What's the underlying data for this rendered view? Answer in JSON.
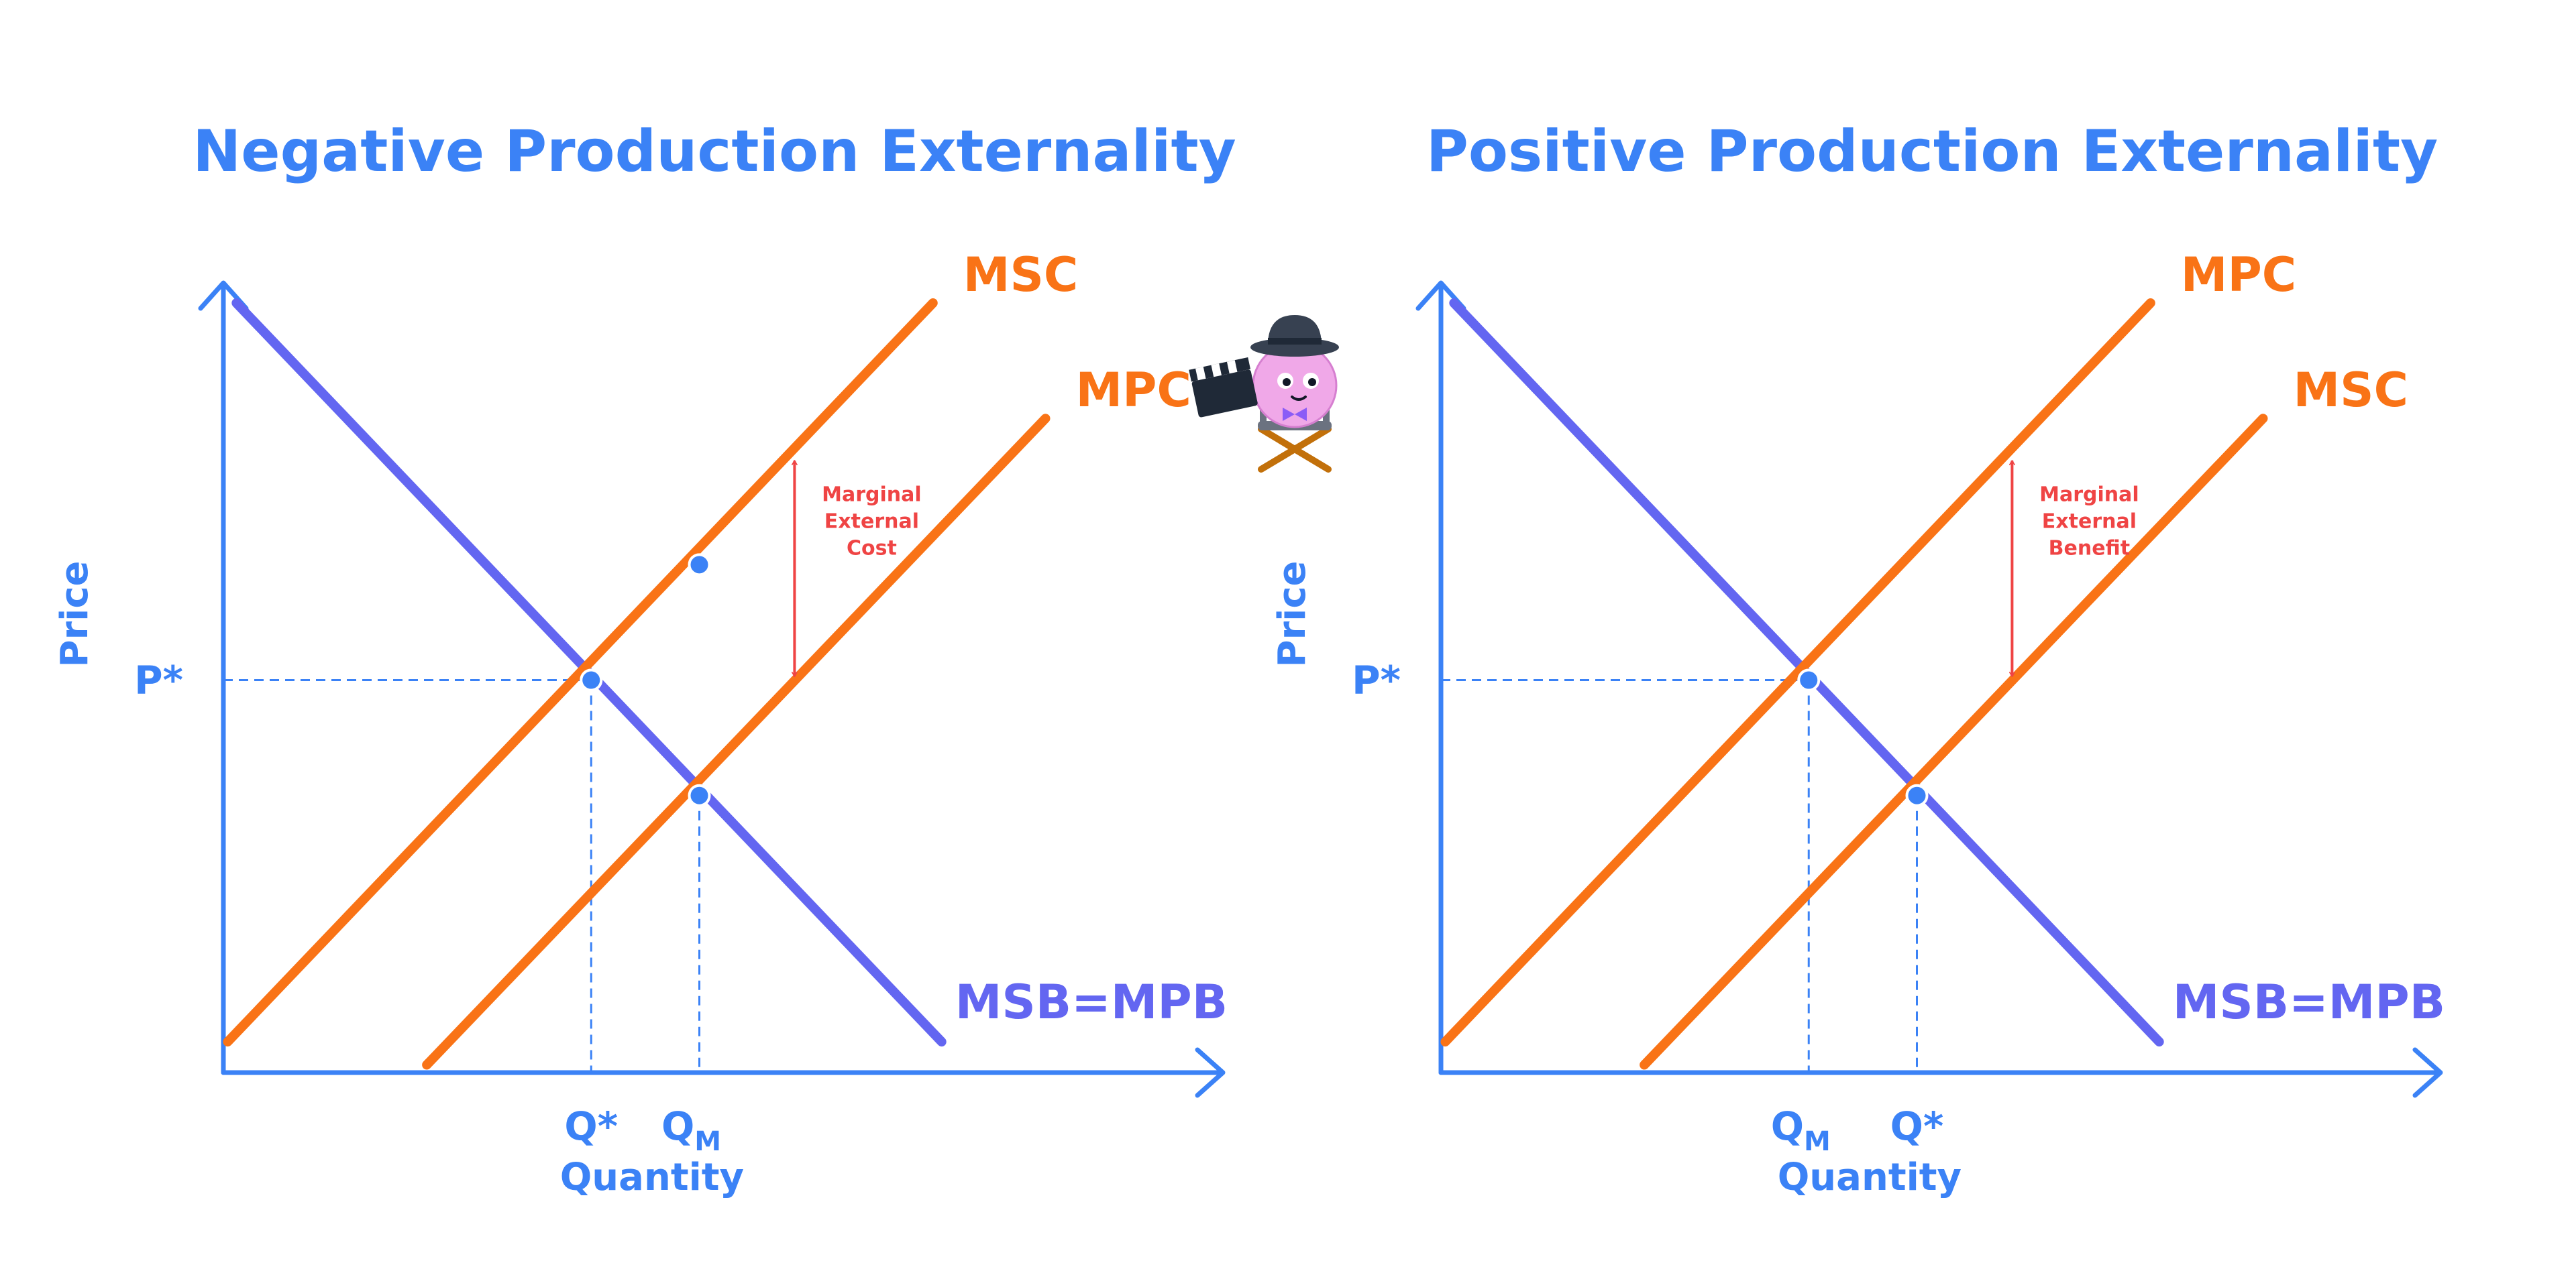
{
  "colors": {
    "axis": "#3b82f6",
    "demand": "#6366f1",
    "supply": "#f97316",
    "guide": "#3b82f6",
    "annotation": "#ef4444",
    "point": "#3b82f6"
  },
  "chart_data": [
    {
      "type": "line",
      "title": "Negative Production Externality",
      "xlabel": "Quantity",
      "ylabel": "Price",
      "xlim": [
        0,
        100
      ],
      "ylim": [
        0,
        100
      ],
      "price_tick": "P*",
      "quantity_ticks": [
        {
          "main": "Q*",
          "sub": "",
          "x": 42.5
        },
        {
          "main": "Q",
          "sub": "M",
          "x": 55
        }
      ],
      "series": [
        {
          "name": "MSB=MPB",
          "role": "demand",
          "x": [
            1.5,
            83
          ],
          "y": [
            100,
            4
          ]
        },
        {
          "name": "MSC",
          "role": "supply",
          "x": [
            0.5,
            82
          ],
          "y": [
            4,
            100
          ]
        },
        {
          "name": "MPC",
          "role": "supply",
          "x": [
            23.5,
            95
          ],
          "y": [
            1,
            85
          ]
        }
      ],
      "label_positions": {
        "MSB=MPB": "end",
        "MSC": "end",
        "MPC": "end"
      },
      "points": [
        {
          "x": 42.5,
          "y": 51
        },
        {
          "x": 55,
          "y": 36
        },
        {
          "x": 55,
          "y": 66
        }
      ],
      "guides": [
        {
          "x": 42.5,
          "y": 51,
          "horizontal": true
        },
        {
          "x": 55,
          "y": 36,
          "horizontal": false
        }
      ],
      "annotation": {
        "lines": [
          "Marginal",
          "External",
          "Cost"
        ],
        "x": 66,
        "y_top": 79.5,
        "y_bottom": 51.5
      }
    },
    {
      "type": "line",
      "title": "Positive Production Externality",
      "xlabel": "Quantity",
      "ylabel": "Price",
      "xlim": [
        0,
        100
      ],
      "ylim": [
        0,
        100
      ],
      "price_tick": "P*",
      "quantity_ticks": [
        {
          "main": "Q",
          "sub": "M",
          "x": 42.5
        },
        {
          "main": "Q*",
          "sub": "",
          "x": 55
        }
      ],
      "series": [
        {
          "name": "MSB=MPB",
          "role": "demand",
          "x": [
            1.5,
            83
          ],
          "y": [
            100,
            4
          ]
        },
        {
          "name": "MPC",
          "role": "supply",
          "x": [
            0.5,
            82
          ],
          "y": [
            4,
            100
          ]
        },
        {
          "name": "MSC",
          "role": "supply",
          "x": [
            23.5,
            95
          ],
          "y": [
            1,
            85
          ]
        }
      ],
      "label_positions": {
        "MSB=MPB": "end",
        "MPC": "end",
        "MSC": "end"
      },
      "points": [
        {
          "x": 42.5,
          "y": 51
        },
        {
          "x": 55,
          "y": 36
        }
      ],
      "guides": [
        {
          "x": 42.5,
          "y": 51,
          "horizontal": true
        },
        {
          "x": 55,
          "y": 36,
          "horizontal": false
        }
      ],
      "annotation": {
        "lines": [
          "Marginal",
          "External",
          "Benefit"
        ],
        "x": 66,
        "y_top": 79.5,
        "y_bottom": 51.5
      }
    }
  ]
}
